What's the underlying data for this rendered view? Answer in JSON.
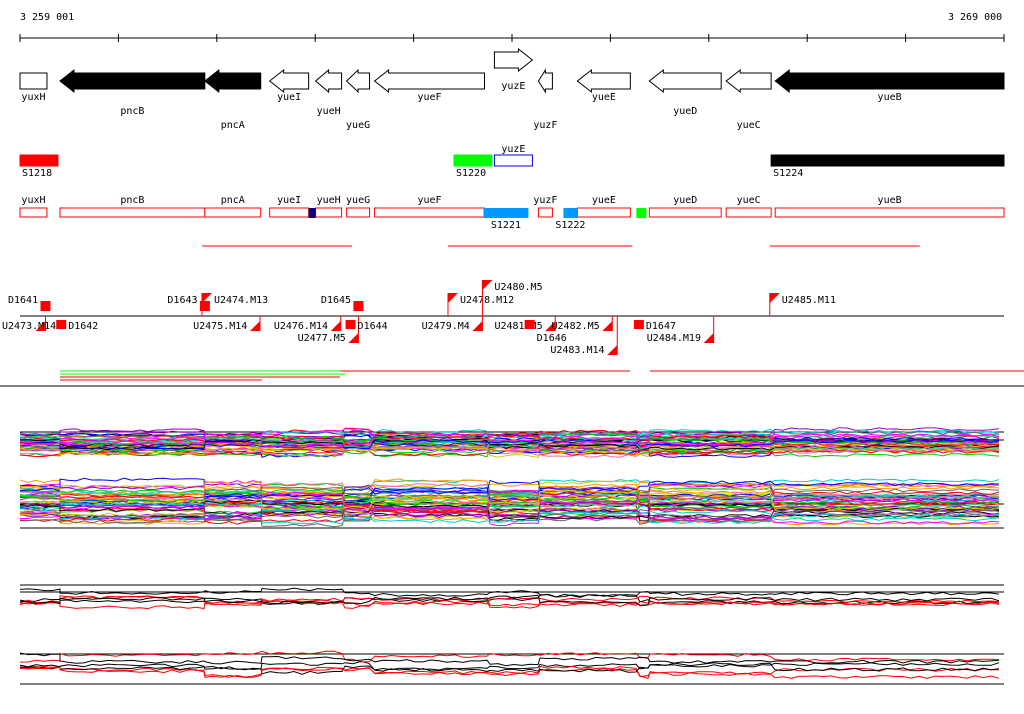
{
  "ruler": {
    "start_label": "3 259 001",
    "end_label": "3 269 000",
    "start": 3259001,
    "end": 3269000
  },
  "genes": [
    {
      "name": "yuxH",
      "start": 3259001,
      "end": 3259275,
      "strand": "none",
      "fill": "#ffffff",
      "label_row": 0
    },
    {
      "name": "pncB",
      "start": 3259407,
      "end": 3260879,
      "strand": "-",
      "fill": "#000000",
      "label_row": 1
    },
    {
      "name": "pncA",
      "start": 3260879,
      "end": 3261447,
      "strand": "-",
      "fill": "#000000",
      "label_row": 2
    },
    {
      "name": "yueI",
      "start": 3261538,
      "end": 3261934,
      "strand": "-",
      "fill": "#ffffff",
      "label_row": 0
    },
    {
      "name": "yueH",
      "start": 3262005,
      "end": 3262269,
      "strand": "-",
      "fill": "#ffffff",
      "label_row": 1
    },
    {
      "name": "yueG",
      "start": 3262320,
      "end": 3262553,
      "strand": "-",
      "fill": "#ffffff",
      "label_row": 2
    },
    {
      "name": "yueF",
      "start": 3262604,
      "end": 3263721,
      "strand": "-",
      "fill": "#ffffff",
      "label_row": 0
    },
    {
      "name": "yuzE",
      "start": 3263822,
      "end": 3264208,
      "strand": "+",
      "fill": "#ffffff",
      "label_row": 0
    },
    {
      "name": "yuzF",
      "start": 3264269,
      "end": 3264411,
      "strand": "-",
      "fill": "#ffffff",
      "label_row": 2
    },
    {
      "name": "yueE",
      "start": 3264665,
      "end": 3265203,
      "strand": "-",
      "fill": "#ffffff",
      "label_row": 0
    },
    {
      "name": "yueD",
      "start": 3265396,
      "end": 3266126,
      "strand": "-",
      "fill": "#ffffff",
      "label_row": 1
    },
    {
      "name": "yueC",
      "start": 3266177,
      "end": 3266634,
      "strand": "-",
      "fill": "#ffffff",
      "label_row": 2
    },
    {
      "name": "yueB",
      "start": 3266675,
      "end": 3269000,
      "strand": "-",
      "fill": "#000000",
      "label_row": 0
    }
  ],
  "segments": [
    {
      "name": "S1218",
      "start": 3259001,
      "end": 3259387,
      "fill": "#ff0000",
      "stroke": "#ff0000",
      "label_pos": "below"
    },
    {
      "name": "S1220",
      "start": 3263411,
      "end": 3263797,
      "fill": "#00ff00",
      "stroke": "#00ff00",
      "label_pos": "below"
    },
    {
      "name": "yuzE",
      "start": 3263822,
      "end": 3264208,
      "fill": "#ffffff",
      "stroke": "#0000ff",
      "label_pos": "above"
    },
    {
      "name": "S1224",
      "start": 3266634,
      "end": 3269000,
      "fill": "#000000",
      "stroke": "#000000",
      "label_pos": "below"
    }
  ],
  "annotation_boxes": [
    {
      "name": "yuxH",
      "start": 3259001,
      "end": 3259275
    },
    {
      "name": "pncB",
      "start": 3259407,
      "end": 3260879
    },
    {
      "name": "pncA",
      "start": 3260879,
      "end": 3261447
    },
    {
      "name": "yueI",
      "start": 3261538,
      "end": 3261934
    },
    {
      "name": "yueH",
      "start": 3262005,
      "end": 3262269
    },
    {
      "name": "yueG",
      "start": 3262320,
      "end": 3262553
    },
    {
      "name": "yueF",
      "start": 3262604,
      "end": 3263721
    },
    {
      "name": "yuzF",
      "start": 3264269,
      "end": 3264411
    },
    {
      "name": "yueE",
      "start": 3264665,
      "end": 3265203
    },
    {
      "name": "yueD",
      "start": 3265396,
      "end": 3266126
    },
    {
      "name": "yueC",
      "start": 3266177,
      "end": 3266634
    },
    {
      "name": "yueB",
      "start": 3266675,
      "end": 3269000
    }
  ],
  "annotation_marks": [
    {
      "name": "S1221",
      "start": 3263711,
      "end": 3264167,
      "fill": "#0099ff"
    },
    {
      "name": "S1222",
      "start": 3264523,
      "end": 3264665,
      "fill": "#0099ff"
    },
    {
      "name": "",
      "start": 3265264,
      "end": 3265366,
      "fill": "#00ff00"
    },
    {
      "name": "",
      "start": 3261934,
      "end": 3262005,
      "fill": "#000080"
    }
  ],
  "promoters_above": [
    {
      "name": "D1641",
      "pos": 3259260,
      "kind": "box"
    },
    {
      "name": "D1643",
      "pos": 3260880,
      "kind": "box"
    },
    {
      "name": "U2474.M13",
      "pos": 3260850,
      "kind": "flag"
    },
    {
      "name": "D1645",
      "pos": 3262440,
      "kind": "box"
    },
    {
      "name": "U2478.M12",
      "pos": 3263350,
      "kind": "flag"
    },
    {
      "name": "U2480.M5",
      "pos": 3263700,
      "kind": "flag"
    },
    {
      "name": "U2485.M11",
      "pos": 3266620,
      "kind": "flag"
    }
  ],
  "promoters_below": [
    {
      "name": "U2473.M14",
      "pos": 3259260,
      "kind": "flag"
    },
    {
      "name": "D1642",
      "pos": 3259420,
      "kind": "box"
    },
    {
      "name": "U2475.M14",
      "pos": 3261440,
      "kind": "flag"
    },
    {
      "name": "U2476.M14",
      "pos": 3262260,
      "kind": "flag"
    },
    {
      "name": "U2477.M5",
      "pos": 3262440,
      "kind": "flag"
    },
    {
      "name": "D1644",
      "pos": 3262360,
      "kind": "box"
    },
    {
      "name": "U2479.M4",
      "pos": 3263700,
      "kind": "flag"
    },
    {
      "name": "U2481.M5",
      "pos": 3264440,
      "kind": "flag"
    },
    {
      "name": "D1646",
      "pos": 3264180,
      "kind": "box"
    },
    {
      "name": "U2482.M5",
      "pos": 3265020,
      "kind": "flag"
    },
    {
      "name": "U2483.M14",
      "pos": 3265070,
      "kind": "flag"
    },
    {
      "name": "D1647",
      "pos": 3265290,
      "kind": "box"
    },
    {
      "name": "U2484.M19",
      "pos": 3266050,
      "kind": "flag"
    }
  ],
  "expression_colors": [
    "#ff0000",
    "#00cc00",
    "#0000ff",
    "#ff00ff",
    "#00cccc",
    "#ff9900",
    "#9900cc",
    "#666666",
    "#cccc00",
    "#ff6699",
    "#000000",
    "#33cc99"
  ],
  "condition_colors": [
    "#ff0000",
    "#000000"
  ]
}
